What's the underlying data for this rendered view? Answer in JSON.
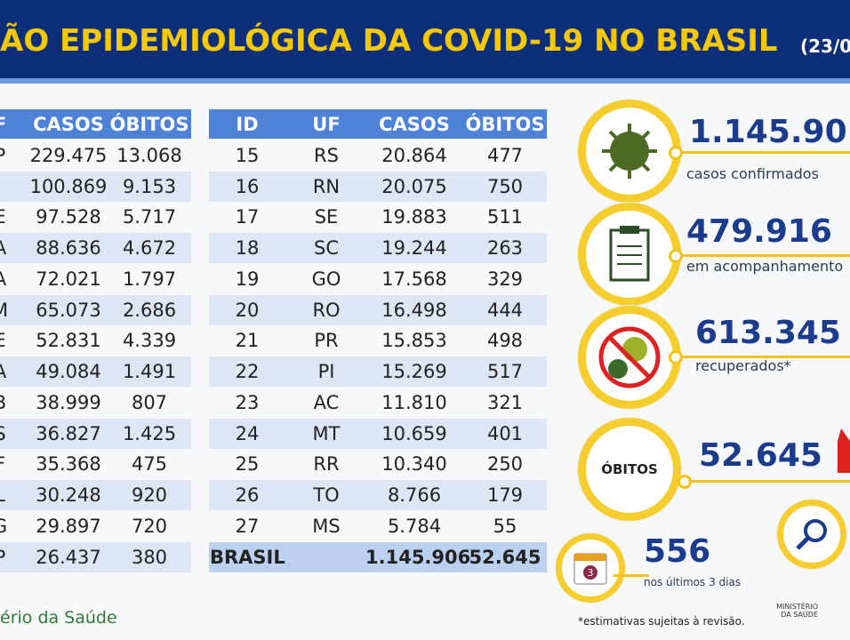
{
  "header": {
    "title": "ÃO EPIDEMIOLÓGICA DA COVID-19 NO BRASIL",
    "date": "(23/0"
  },
  "left_table": {
    "columns": [
      "F",
      "CASOS",
      "ÓBITOS"
    ],
    "rows": [
      [
        "P",
        "229.475",
        "13.068"
      ],
      [
        null,
        "100.869",
        "9.153"
      ],
      [
        "E",
        "97.528",
        "5.717"
      ],
      [
        "A",
        "88.636",
        "4.672"
      ],
      [
        "A",
        "72.021",
        "1.797"
      ],
      [
        "M",
        "65.073",
        "2.686"
      ],
      [
        "E",
        "52.831",
        "4.339"
      ],
      [
        "A",
        "49.084",
        "1.491"
      ],
      [
        "B",
        "38.999",
        "807"
      ],
      [
        "S",
        "36.827",
        "1.425"
      ],
      [
        "F",
        "35.368",
        "475"
      ],
      [
        "L",
        "30.248",
        "920"
      ],
      [
        "G",
        "29.897",
        "720"
      ],
      [
        "P",
        "26.437",
        "380"
      ]
    ]
  },
  "right_table": {
    "columns": [
      "ID",
      "UF",
      "CASOS",
      "ÓBITOS"
    ],
    "rows": [
      [
        "15",
        "RS",
        "20.864",
        "477"
      ],
      [
        "16",
        "RN",
        "20.075",
        "750"
      ],
      [
        "17",
        "SE",
        "19.883",
        "511"
      ],
      [
        "18",
        "SC",
        "19.244",
        "263"
      ],
      [
        "19",
        "GO",
        "17.568",
        "329"
      ],
      [
        "20",
        "RO",
        "16.498",
        "444"
      ],
      [
        "21",
        "PR",
        "15.853",
        "498"
      ],
      [
        "22",
        "PI",
        "15.269",
        "517"
      ],
      [
        "23",
        "AC",
        "11.810",
        "321"
      ],
      [
        "24",
        "MT",
        "10.659",
        "401"
      ],
      [
        "25",
        "RR",
        "10.340",
        "250"
      ],
      [
        "26",
        "TO",
        "8.766",
        "179"
      ],
      [
        "27",
        "MS",
        "5.784",
        "55"
      ]
    ],
    "total": [
      "BRASIL",
      "1.145.906",
      "52.645"
    ]
  },
  "stats": {
    "confirmed": {
      "value": "1.145.90",
      "label": "casos confirmados"
    },
    "monitoring": {
      "value": "479.916",
      "label": "em acompanhamento"
    },
    "recovered": {
      "value": "613.345",
      "label": "recuperados*"
    },
    "deaths": {
      "badge": "ÓBITOS",
      "value": "52.645"
    },
    "recent": {
      "icon": "3",
      "value": "556",
      "label": "nos últimos 3 dias"
    }
  },
  "footer": {
    "source": "ério da Saúde",
    "note": "*estimativas sujeitas à revisão.",
    "logo": "MINISTÉRIO DA SAÚDE"
  }
}
